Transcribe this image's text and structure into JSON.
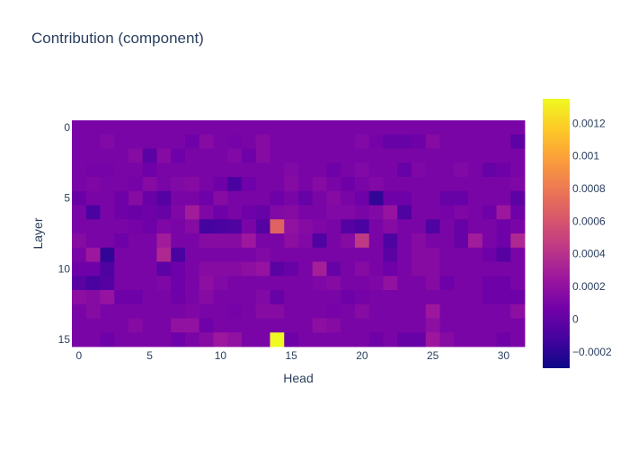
{
  "chart_data": {
    "type": "heatmap",
    "title": "Contribution (component)",
    "xlabel": "Head",
    "ylabel": "Layer",
    "x_ticks": [
      0,
      5,
      10,
      15,
      20,
      25,
      30
    ],
    "y_ticks": [
      0,
      5,
      10,
      15
    ],
    "colorbar_ticks": [
      -0.0002,
      0,
      0.0002,
      0.0004,
      0.0006,
      0.0008,
      0.001,
      0.0012
    ],
    "colorbar_tick_labels": [
      "−0.0002",
      "0",
      "0.0002",
      "0.0004",
      "0.0006",
      "0.0008",
      "0.001",
      "0.0012"
    ],
    "zmin": -0.0003,
    "zmax": 0.00135,
    "colorscale": [
      "#0d0887",
      "#46039f",
      "#7201a8",
      "#9c179e",
      "#bd3786",
      "#d8576b",
      "#ed7953",
      "#fb9f3a",
      "#fdca26",
      "#f0f921"
    ],
    "grid": false,
    "z": [
      [
        0.0001,
        0.0001,
        0.0001,
        0.0001,
        0.0001,
        0.0001,
        0.0001,
        0.0001,
        0.0001,
        0.0001,
        0.0001,
        0.0001,
        0.0001,
        0.0001,
        0.0001,
        0.0001,
        0.0001,
        0.0001,
        0.0001,
        0.0001,
        0.0001,
        0.0001,
        0.0001,
        0.0001,
        0.0001,
        0.0001,
        0.0001,
        0.0001,
        0.0001,
        0.0001,
        0.0001,
        0.0001
      ],
      [
        0.0001,
        0.0001,
        0.00013,
        0.0001,
        0.0001,
        0.0001,
        0.0001,
        0.0001,
        5e-05,
        0.00015,
        0.0001,
        8e-05,
        0.0001,
        0.00015,
        0.0001,
        0.0001,
        0.0001,
        0.0001,
        0.0001,
        0.0001,
        0.00013,
        8e-05,
        2e-05,
        2e-05,
        5e-05,
        0.00015,
        0.0001,
        0.0001,
        0.0001,
        0.0001,
        0.0001,
        -2e-05
      ],
      [
        0.0001,
        0.0001,
        0.0001,
        0.0001,
        0.00015,
        -3e-05,
        0.00015,
        5e-05,
        0.0001,
        0.0001,
        0.0001,
        0.00013,
        5e-05,
        0.00015,
        0.0001,
        0.0001,
        0.0001,
        0.0001,
        0.0001,
        0.0001,
        0.0001,
        0.0001,
        0.0001,
        0.0001,
        0.0001,
        0.0001,
        0.0001,
        0.0001,
        0.0001,
        0.0001,
        0.0001,
        0.0001
      ],
      [
        0.0001,
        8e-05,
        8e-05,
        0.0001,
        0.0001,
        5e-05,
        0.0001,
        0.0001,
        0.0001,
        0.0001,
        0.0001,
        0.0001,
        0.0001,
        0.0001,
        0.0001,
        0.00013,
        0.0001,
        0.0001,
        5e-05,
        0.0001,
        0.00013,
        0.0001,
        0.0001,
        2e-05,
        0.00012,
        0.0001,
        0.0001,
        0.00013,
        0.0001,
        2e-05,
        5e-05,
        0.0001
      ],
      [
        0.0001,
        0.00012,
        0.0001,
        0.0001,
        8e-05,
        0.00015,
        0.0001,
        0.00013,
        0.00015,
        0.0001,
        5e-05,
        -0.0001,
        5e-05,
        0.0001,
        0.0001,
        0.00015,
        0.0001,
        0.00015,
        0.0001,
        5e-05,
        0.0001,
        0.00013,
        0.0001,
        0.0001,
        0.0001,
        0.0001,
        0.0001,
        0.0001,
        0.0001,
        0.0001,
        0.0001,
        0.00012
      ],
      [
        3e-05,
        0.0001,
        0.0001,
        5e-05,
        0.00015,
        3e-05,
        -5e-05,
        0.0001,
        0.0001,
        5e-05,
        0.00015,
        0.0001,
        0.0001,
        0.0001,
        5e-05,
        0.0001,
        2e-05,
        0.0001,
        0.00015,
        0.0001,
        5e-05,
        -0.00018,
        5e-05,
        5e-05,
        0.0001,
        0.0001,
        2e-05,
        2e-05,
        0.0001,
        0.0001,
        0.0001,
        -2e-05
      ],
      [
        0.0001,
        -0.0001,
        0.0001,
        5e-05,
        3e-05,
        5e-05,
        2e-05,
        0.00012,
        0.00028,
        0.00012,
        5e-05,
        0.0001,
        5e-05,
        2e-05,
        0.00013,
        0.00015,
        0.0001,
        0.0001,
        0.00013,
        0.00013,
        0.0001,
        0.00013,
        0.00022,
        -8e-05,
        0.0001,
        0.0001,
        8e-05,
        0.00012,
        0.0001,
        5e-05,
        0.00025,
        5e-05
      ],
      [
        0.0001,
        0.0001,
        0.0001,
        0.0001,
        8e-05,
        5e-05,
        0.00012,
        0.0001,
        0.00015,
        -0.00012,
        -0.0001,
        -8e-05,
        0.0001,
        -5e-05,
        0.00068,
        0.0002,
        0.00015,
        0.00012,
        0.0001,
        -5e-05,
        -0.0001,
        0.0001,
        0.00015,
        0.0001,
        0.0001,
        -8e-05,
        0.0001,
        2e-05,
        0.0001,
        0.0001,
        5e-05,
        0.0001
      ],
      [
        0.00015,
        0.0001,
        0.0001,
        5e-05,
        0.0001,
        0.0001,
        0.00028,
        0.0001,
        0.0001,
        0.00015,
        0.00015,
        0.00015,
        0.00025,
        0.0001,
        0.0001,
        0.00018,
        0.00013,
        -8e-05,
        0.0001,
        0.00015,
        0.00045,
        0.0001,
        -8e-05,
        0.0001,
        0.00015,
        0.0001,
        0.0001,
        2e-05,
        0.00028,
        0.0001,
        5e-05,
        0.00035
      ],
      [
        0.0001,
        0.00025,
        -0.00018,
        0.0001,
        0.0001,
        0.0001,
        0.00035,
        -0.0001,
        0.0001,
        0.0001,
        0.0001,
        0.0001,
        0.0001,
        0.00013,
        0.0001,
        0.0001,
        0.0001,
        0.0001,
        0.0001,
        0.0001,
        0.0001,
        0.0001,
        -3e-05,
        0.0001,
        0.00015,
        0.00015,
        0.0001,
        0.0001,
        0.0001,
        5e-05,
        -5e-05,
        0.0001
      ],
      [
        5e-05,
        5e-05,
        -8e-05,
        0.0001,
        0.0001,
        0.0001,
        -2e-05,
        5e-05,
        0.0001,
        0.00015,
        0.00015,
        0.00015,
        0.00018,
        0.00022,
        -3e-05,
        2e-05,
        0.0001,
        0.0003,
        2e-05,
        0.0001,
        0.00015,
        0.0001,
        5e-05,
        0.0001,
        0.00015,
        0.00015,
        0.0001,
        0.0001,
        0.0001,
        0.0001,
        0.0001,
        0.0001
      ],
      [
        -3e-05,
        -0.0001,
        -5e-05,
        0.0001,
        0.0001,
        0.0001,
        0.00012,
        5e-05,
        0.0001,
        0.00018,
        0.00013,
        0.0001,
        0.0001,
        0.0001,
        0.0001,
        0.0001,
        0.0001,
        0.00012,
        0.00015,
        0.0001,
        0.0001,
        0.00012,
        0.0002,
        0.0001,
        0.0001,
        0.00015,
        5e-05,
        0.0001,
        0.0001,
        5e-05,
        5e-05,
        0.0001
      ],
      [
        0.00018,
        0.00015,
        0.00022,
        5e-05,
        5e-05,
        0.0001,
        0.0001,
        5e-05,
        0.0001,
        0.00015,
        0.0001,
        0.0001,
        0.0001,
        0.00013,
        2e-05,
        0.0001,
        0.0001,
        0.0001,
        0.0001,
        5e-05,
        8e-05,
        0.0001,
        0.0001,
        0.0001,
        0.0001,
        0.0001,
        0.0001,
        0.0001,
        0.0001,
        5e-05,
        5e-05,
        5e-05
      ],
      [
        0.0001,
        0.00015,
        0.0001,
        0.0001,
        0.0001,
        0.0001,
        0.0001,
        0.0001,
        0.00012,
        0.0001,
        0.0001,
        8e-05,
        0.0001,
        0.00015,
        0.00015,
        0.0001,
        0.0001,
        0.0001,
        8e-05,
        0.0001,
        0.00015,
        0.0001,
        0.0001,
        0.0001,
        0.0001,
        0.00025,
        0.0001,
        0.0001,
        0.0001,
        0.0001,
        0.0001,
        0.00018
      ],
      [
        0.0001,
        0.0001,
        0.0001,
        0.0001,
        0.00015,
        0.0001,
        0.0001,
        0.0002,
        0.0002,
        5e-05,
        0.0001,
        0.0001,
        0.0001,
        0.0001,
        0.0001,
        0.0001,
        0.0001,
        0.00018,
        0.00015,
        0.0001,
        0.0001,
        0.0001,
        0.0001,
        0.0001,
        0.0001,
        0.00018,
        0.0001,
        0.0001,
        0.0001,
        0.0001,
        0.0001,
        0.0001
      ],
      [
        0.0001,
        0.0001,
        5e-05,
        0.0001,
        0.0001,
        0.0001,
        0.0001,
        5e-05,
        0.0001,
        0.00015,
        0.00025,
        0.0002,
        0.0001,
        0.0001,
        0.00135,
        5e-05,
        0.0001,
        0.0001,
        0.0001,
        0.0001,
        0.0001,
        5e-05,
        0.0001,
        2e-05,
        2e-05,
        0.00025,
        0.00015,
        0.0001,
        0.0001,
        0.0001,
        5e-05,
        0.0001
      ]
    ]
  }
}
